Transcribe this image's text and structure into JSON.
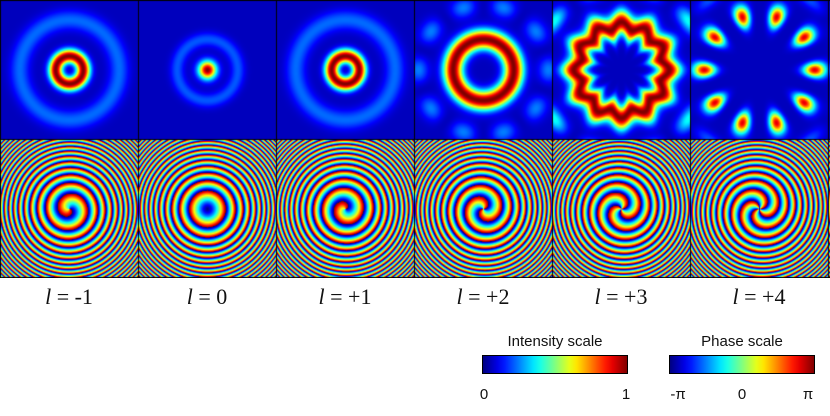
{
  "panels": [
    {
      "label_prefix": "l",
      "label_value": "= -1",
      "charge": -1,
      "intensity_pattern": "single bright ring, small radius"
    },
    {
      "label_prefix": "l",
      "label_value": "= 0",
      "charge": 0,
      "intensity_pattern": "central bright spot with faint outer ring"
    },
    {
      "label_prefix": "l",
      "label_value": "= +1",
      "charge": 1,
      "intensity_pattern": "single bright ring, small radius"
    },
    {
      "label_prefix": "l",
      "label_value": "= +2",
      "charge": 2,
      "intensity_pattern": "thick bright ring with faint side lobes"
    },
    {
      "label_prefix": "l",
      "label_value": "= +3",
      "charge": 3,
      "intensity_pattern": "scalloped bright ring with outer lobes"
    },
    {
      "label_prefix": "l",
      "label_value": "= +4",
      "charge": 4,
      "intensity_pattern": "ring of ten bright lobes"
    }
  ],
  "intensity_scale": {
    "title": "Intensity scale",
    "min_label": "0",
    "max_label": "1",
    "colormap": "jet"
  },
  "phase_scale": {
    "title": "Phase scale",
    "min_label": "-π",
    "mid_label": "0",
    "max_label": "π",
    "colormap": "jet"
  },
  "colors": {
    "panel_border": "#000000",
    "background": "#ffffff"
  }
}
